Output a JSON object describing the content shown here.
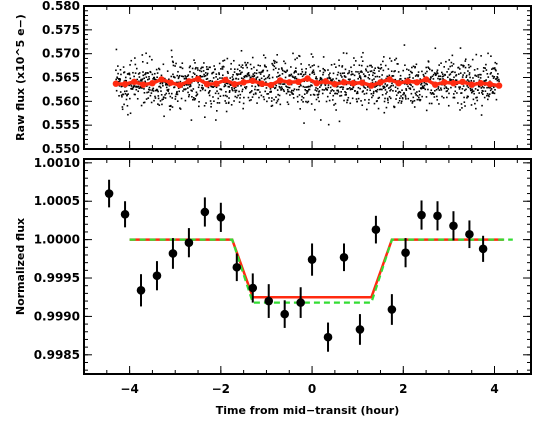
{
  "chart_data": [
    {
      "type": "scatter",
      "panel": "top",
      "title": "",
      "xlabel": "",
      "ylabel": "Raw flux (x10^5 e−)",
      "xlim": [
        -5.0,
        4.8
      ],
      "ylim": [
        0.55,
        0.58
      ],
      "yticks": [
        "0.550",
        "0.555",
        "0.560",
        "0.565",
        "0.570",
        "0.575",
        "0.580"
      ],
      "xticks_labeled": false,
      "grid": false,
      "legend": "none",
      "scatter_series": {
        "color": "#000000",
        "x_range": [
          -4.3,
          4.1
        ],
        "center": 0.5638,
        "typical_spread": 0.0025,
        "approx_points": 1600
      },
      "series": [
        {
          "color": "#ff2a10",
          "x": [
            -4.3,
            -4.1,
            -3.9,
            -3.7,
            -3.5,
            -3.3,
            -3.1,
            -2.9,
            -2.7,
            -2.5,
            -2.3,
            -2.1,
            -1.9,
            -1.7,
            -1.5,
            -1.3,
            -1.1,
            -0.9,
            -0.7,
            -0.5,
            -0.3,
            -0.1,
            0.1,
            0.3,
            0.5,
            0.7,
            0.9,
            1.1,
            1.3,
            1.5,
            1.7,
            1.9,
            2.1,
            2.3,
            2.5,
            2.7,
            2.9,
            3.1,
            3.3,
            3.5,
            3.7,
            3.9,
            4.1
          ],
          "y": [
            0.5637,
            0.5636,
            0.5641,
            0.5635,
            0.5638,
            0.5646,
            0.5639,
            0.5634,
            0.5642,
            0.5647,
            0.5636,
            0.5637,
            0.5645,
            0.5636,
            0.564,
            0.5643,
            0.5637,
            0.5634,
            0.5644,
            0.564,
            0.5641,
            0.5648,
            0.5638,
            0.5642,
            0.5636,
            0.564,
            0.5638,
            0.5639,
            0.5633,
            0.564,
            0.5646,
            0.5638,
            0.5642,
            0.564,
            0.5646,
            0.5635,
            0.564,
            0.5638,
            0.5641,
            0.5635,
            0.5638,
            0.5636,
            0.5633
          ]
        }
      ]
    },
    {
      "type": "scatter",
      "panel": "bottom",
      "title": "",
      "xlabel": "Time from mid−transit (hour)",
      "ylabel": "Normalized flux",
      "xlim": [
        -5.0,
        4.8
      ],
      "ylim": [
        0.99825,
        1.00105
      ],
      "xticks": [
        "−4",
        "−2",
        "0",
        "2",
        "4"
      ],
      "yticks": [
        "0.9985",
        "0.9990",
        "0.9995",
        "1.0000",
        "1.0005",
        "1.0010"
      ],
      "grid": false,
      "legend": "none",
      "points": {
        "color": "#000000",
        "x": [
          -4.45,
          -4.1,
          -3.75,
          -3.4,
          -3.05,
          -2.7,
          -2.35,
          -2.0,
          -1.65,
          -1.3,
          -0.95,
          -0.6,
          -0.25,
          0.0,
          0.35,
          0.7,
          1.05,
          1.4,
          1.75,
          2.05,
          2.4,
          2.75,
          3.1,
          3.45,
          3.75
        ],
        "y": [
          1.0006,
          1.00033,
          0.99934,
          0.99953,
          0.99982,
          0.99996,
          1.00036,
          1.00029,
          0.99964,
          0.99937,
          0.9992,
          0.99903,
          0.99918,
          0.99974,
          0.99873,
          0.99977,
          0.99883,
          1.00013,
          0.99909,
          0.99983,
          1.00032,
          1.00031,
          1.00018,
          1.00007,
          0.99988
        ],
        "yerr": [
          0.00018,
          0.00017,
          0.00021,
          0.00019,
          0.0002,
          0.00019,
          0.00019,
          0.00019,
          0.00018,
          0.00019,
          0.00022,
          0.00018,
          0.0002,
          0.00021,
          0.00019,
          0.00018,
          0.0002,
          0.00018,
          0.0002,
          0.00019,
          0.00019,
          0.00019,
          0.00019,
          0.00018,
          0.00017
        ]
      },
      "series": [
        {
          "color": "#ff2a10",
          "style": "solid",
          "x": [
            -4.0,
            -1.75,
            -1.3,
            1.3,
            1.75,
            4.2
          ],
          "y": [
            1.0,
            1.0,
            0.99925,
            0.99925,
            1.0,
            1.0
          ]
        },
        {
          "color": "#33dd33",
          "style": "dashed",
          "x": [
            -4.0,
            -1.75,
            -1.3,
            1.3,
            1.75,
            4.4
          ],
          "y": [
            1.0,
            1.0,
            0.99918,
            0.99918,
            1.0,
            1.0
          ]
        }
      ]
    }
  ]
}
